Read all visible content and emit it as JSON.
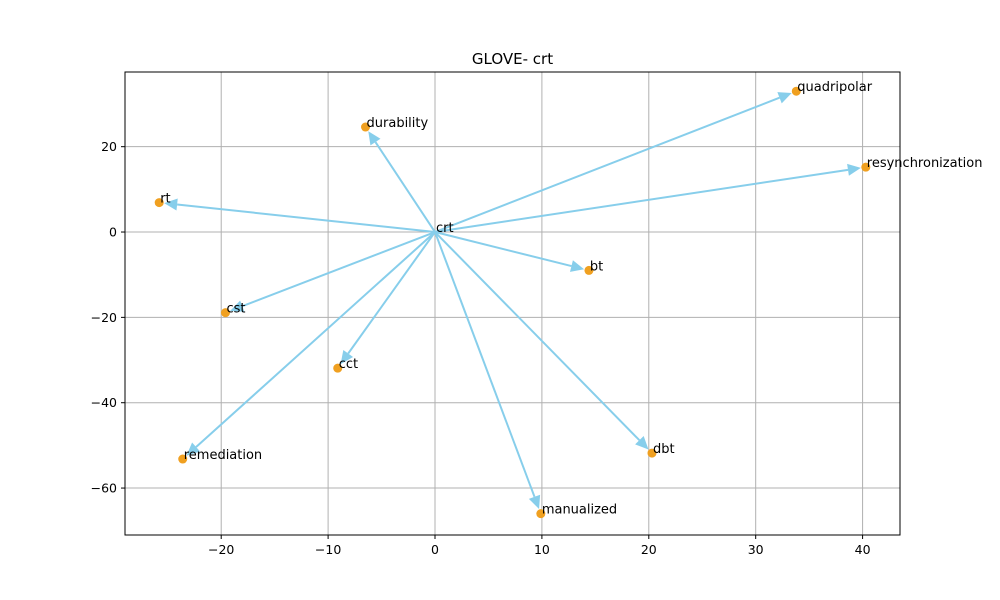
{
  "chart_data": {
    "type": "scatter",
    "title": "GLOVE- crt",
    "xlabel": "",
    "ylabel": "",
    "xlim": [
      -29,
      43.5
    ],
    "ylim": [
      -71,
      37.5
    ],
    "x_ticks": [
      -20,
      -10,
      0,
      10,
      20,
      30,
      40
    ],
    "y_ticks": [
      -60,
      -40,
      -20,
      0,
      20
    ],
    "grid": true,
    "origin": {
      "label": "crt",
      "x": 0,
      "y": 0
    },
    "points": [
      {
        "label": "quadripolar",
        "x": 33.8,
        "y": 33.0
      },
      {
        "label": "resynchronization",
        "x": 40.3,
        "y": 15.2
      },
      {
        "label": "durability",
        "x": -6.5,
        "y": 24.6
      },
      {
        "label": "rt",
        "x": -25.8,
        "y": 6.9
      },
      {
        "label": "bt",
        "x": 14.4,
        "y": -9.0
      },
      {
        "label": "cst",
        "x": -19.6,
        "y": -18.9
      },
      {
        "label": "cct",
        "x": -9.1,
        "y": -31.9
      },
      {
        "label": "remediation",
        "x": -23.6,
        "y": -53.2
      },
      {
        "label": "dbt",
        "x": 20.3,
        "y": -51.8
      },
      {
        "label": "manualized",
        "x": 9.9,
        "y": -66.0
      }
    ],
    "colors": {
      "point": "#f0a020",
      "arrow": "#87ceeb",
      "grid": "#b0b0b0"
    }
  }
}
